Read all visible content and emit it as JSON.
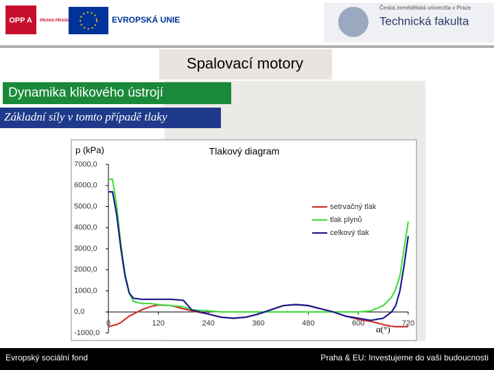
{
  "slide": {
    "logo_opp": "OPP A",
    "logo_praha": "PRAHA PRAGUE PRAG",
    "logo_eu": "EVROPSKÁ UNIE",
    "university": "Česká zemědělská univerzita v Praze",
    "faculty": "Technická fakulta",
    "heading": "Spalovací motory",
    "section": "Dynamika klikového ústrojí",
    "subsection": "Základní síly v tomto případě tlaky",
    "footer_left": "Evropský sociální fond",
    "footer_right": "Praha & EU: Investujeme do vaší budoucnosti"
  },
  "chart_data": {
    "type": "line",
    "title": "Tlakový diagram",
    "y_label": "p (kPa)",
    "x_label": "α(°)",
    "x": [
      0,
      10,
      20,
      30,
      40,
      50,
      60,
      80,
      100,
      120,
      150,
      180,
      200,
      240,
      270,
      300,
      330,
      360,
      390,
      420,
      450,
      480,
      510,
      540,
      570,
      600,
      630,
      660,
      680,
      690,
      700,
      710,
      720
    ],
    "series": [
      {
        "name": "setrvačný tlak",
        "color": "#d03030",
        "values": [
          -700,
          -650,
          -600,
          -500,
          -350,
          -200,
          -100,
          100,
          250,
          330,
          300,
          150,
          50,
          -100,
          -250,
          -300,
          -250,
          -100,
          100,
          300,
          350,
          300,
          150,
          0,
          -200,
          -350,
          -450,
          -600,
          -680,
          -700,
          -700,
          -700,
          -700
        ]
      },
      {
        "name": "tlak plynů",
        "color": "#44dd44",
        "values": [
          6300,
          6300,
          5000,
          3200,
          1800,
          900,
          500,
          400,
          400,
          350,
          300,
          250,
          100,
          50,
          0,
          0,
          0,
          0,
          0,
          0,
          0,
          0,
          0,
          0,
          0,
          0,
          50,
          300,
          700,
          1100,
          1700,
          3000,
          4300
        ]
      },
      {
        "name": "celkový tlak",
        "color": "#1a1a8c",
        "values": [
          5700,
          5700,
          4600,
          3000,
          1700,
          900,
          650,
          600,
          600,
          600,
          600,
          550,
          100,
          -100,
          -250,
          -300,
          -250,
          -100,
          100,
          300,
          350,
          300,
          150,
          0,
          -200,
          -300,
          -400,
          -300,
          0,
          300,
          1000,
          2200,
          3600
        ]
      }
    ],
    "xlim": [
      0,
      720
    ],
    "xticks": [
      0,
      120,
      240,
      360,
      480,
      600,
      720
    ],
    "ylim": [
      -1000,
      7000
    ],
    "yticks": [
      {
        "value": -1000,
        "label": "-1000,0"
      },
      {
        "value": 0,
        "label": "0,0"
      },
      {
        "value": 1000,
        "label": "1000,0"
      },
      {
        "value": 2000,
        "label": "2000,0"
      },
      {
        "value": 3000,
        "label": "3000,0"
      },
      {
        "value": 4000,
        "label": "4000,0"
      },
      {
        "value": 5000,
        "label": "5000,0"
      },
      {
        "value": 6000,
        "label": "6000,0"
      },
      {
        "value": 7000,
        "label": "7000,0"
      }
    ],
    "legend": "right"
  }
}
